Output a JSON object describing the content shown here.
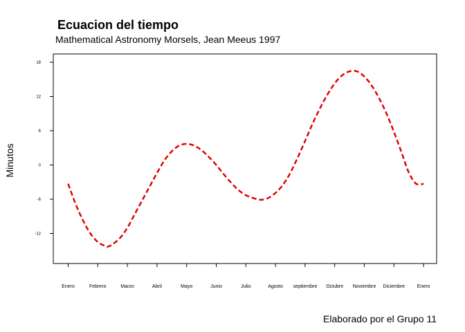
{
  "chart_data": {
    "type": "line",
    "title": "Ecuacion del tiempo",
    "subtitle": "Mathematical Astronomy Morsels, Jean Meeus 1997",
    "xlabel": "",
    "ylabel": "Minutos",
    "caption": "Elaborado por el Grupo 11",
    "categories": [
      "Enero",
      "Febrero",
      "Marzo",
      "Abril",
      "Mayo",
      "Junio",
      "Julio",
      "Agosto",
      "septiembre",
      "Octubre",
      "Noviembre",
      "Diciembre",
      "Enero"
    ],
    "yticks": [
      18,
      12,
      6,
      0,
      -6,
      -12
    ],
    "ylim": [
      -17,
      19
    ],
    "xlim": [
      -0.5,
      12.3
    ],
    "grid": false,
    "line_color": "#e00000",
    "line_style": "dashed",
    "series": [
      {
        "x": [
          0,
          0.25,
          0.5,
          0.75,
          1,
          1.25,
          1.35,
          1.5,
          1.75,
          2,
          2.25,
          2.5,
          2.75,
          3,
          3.25,
          3.5,
          3.75,
          4,
          4.25,
          4.5,
          4.75,
          5,
          5.25,
          5.5,
          5.75,
          6,
          6.25,
          6.5,
          6.75,
          7,
          7.25,
          7.5,
          7.75,
          8,
          8.25,
          8.5,
          8.75,
          9,
          9.25,
          9.5,
          9.75,
          10,
          10.25,
          10.5,
          10.75,
          11,
          11.25,
          11.5,
          11.75,
          12
        ],
        "values": [
          -3.3,
          -6.8,
          -9.7,
          -12.0,
          -13.5,
          -14.2,
          -14.3,
          -13.9,
          -12.8,
          -11.0,
          -8.6,
          -6.2,
          -3.8,
          -1.4,
          0.8,
          2.4,
          3.4,
          3.7,
          3.4,
          2.6,
          1.4,
          0.0,
          -1.6,
          -3.1,
          -4.4,
          -5.3,
          -5.8,
          -6.1,
          -5.8,
          -4.9,
          -3.5,
          -1.4,
          1.3,
          4.2,
          7.2,
          9.9,
          12.3,
          14.3,
          15.7,
          16.4,
          16.4,
          15.5,
          13.9,
          11.7,
          9.0,
          5.8,
          2.3,
          -1.3,
          -3.3,
          -3.3
        ]
      }
    ]
  }
}
